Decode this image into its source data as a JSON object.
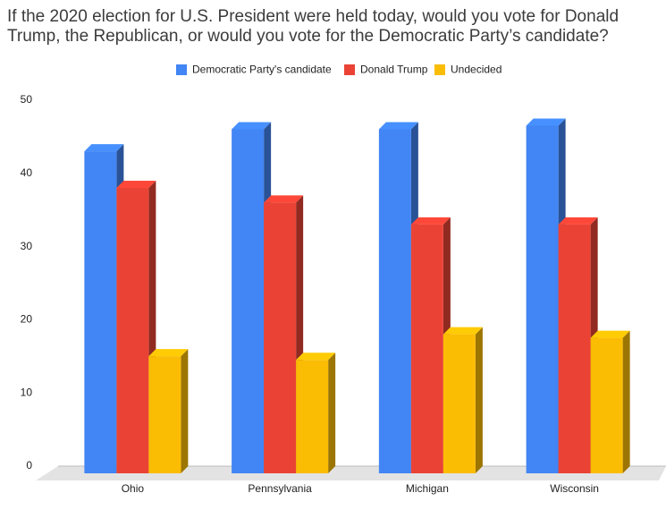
{
  "chart_data": {
    "type": "bar3d",
    "title": "If the 2020 election for U.S. President were held today, would you vote for Donald Trump, the Republican, or would you vote for the Democratic Party’s candidate?",
    "categories": [
      "Ohio",
      "Pennsylvania",
      "Michigan",
      "Wisconsin"
    ],
    "series": [
      {
        "name": "Democratic Party's candidate",
        "color": "#4285f4",
        "values": [
          44,
          47,
          47,
          47.5
        ]
      },
      {
        "name": "Donald Trump",
        "color": "#ea4335",
        "values": [
          39,
          37,
          34,
          34
        ]
      },
      {
        "name": "Undecided",
        "color": "#fbbc04",
        "values": [
          16,
          15.5,
          19,
          18.5
        ]
      }
    ],
    "ylim": [
      0,
      50
    ],
    "yticks": [
      0,
      10,
      20,
      30,
      40,
      50
    ],
    "legend": "top"
  }
}
